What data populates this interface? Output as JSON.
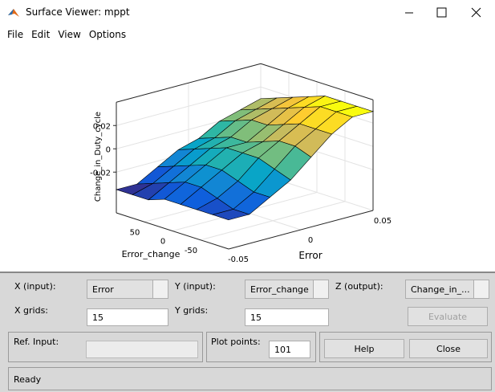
{
  "window": {
    "title": "Surface Viewer: mppt"
  },
  "menu": [
    "File",
    "Edit",
    "View",
    "Options"
  ],
  "plot": {
    "type": "surface",
    "xlabel": "Error",
    "ylabel": "Error_change",
    "zlabel": "Change_in_Duty_cycle",
    "x": [
      -0.05,
      -0.0357,
      -0.0214,
      -0.0071,
      0.0071,
      0.0214,
      0.0357,
      0.05
    ],
    "y": [
      -100,
      -71.4,
      -42.9,
      -14.3,
      14.3,
      42.9,
      71.4,
      100
    ],
    "z": [
      [
        -0.03,
        -0.03,
        -0.02,
        -0.01,
        0.005,
        0.02,
        0.03,
        0.03
      ],
      [
        -0.03,
        -0.03,
        -0.02,
        -0.005,
        0.01,
        0.02,
        0.03,
        0.03
      ],
      [
        -0.03,
        -0.025,
        -0.015,
        0,
        0.01,
        0.02,
        0.03,
        0.03
      ],
      [
        -0.03,
        -0.02,
        -0.01,
        0,
        0.005,
        0.015,
        0.025,
        0.03
      ],
      [
        -0.03,
        -0.02,
        -0.01,
        0,
        0,
        0.01,
        0.02,
        0.025
      ],
      [
        -0.035,
        -0.025,
        -0.015,
        -0.005,
        0,
        0.01,
        0.015,
        0.02
      ],
      [
        -0.035,
        -0.03,
        -0.02,
        -0.01,
        -0.005,
        0.005,
        0.01,
        0.015
      ],
      [
        -0.035,
        -0.035,
        -0.025,
        -0.015,
        -0.01,
        0,
        0.005,
        0.01
      ]
    ],
    "xlim": [
      -0.05,
      0.05
    ],
    "ylim": [
      -100,
      100
    ],
    "zlim": [
      -0.055,
      0.04
    ],
    "xticks": [
      -0.05,
      0,
      0.05
    ],
    "yticks": [
      -50,
      0,
      50
    ],
    "zticks": [
      -0.02,
      0,
      0.02
    ]
  },
  "controls": {
    "x_input_label": "X (input):",
    "x_input": "Error",
    "y_input_label": "Y (input):",
    "y_input": "Error_change",
    "z_output_label": "Z (output):",
    "z_output": "Change_in_...",
    "x_grids_label": "X grids:",
    "x_grids": "15",
    "y_grids_label": "Y grids:",
    "y_grids": "15",
    "evaluate": "Evaluate",
    "ref_input_label": "Ref. Input:",
    "plot_points_label": "Plot points:",
    "plot_points": "101",
    "help": "Help",
    "close": "Close"
  },
  "status": "Ready"
}
